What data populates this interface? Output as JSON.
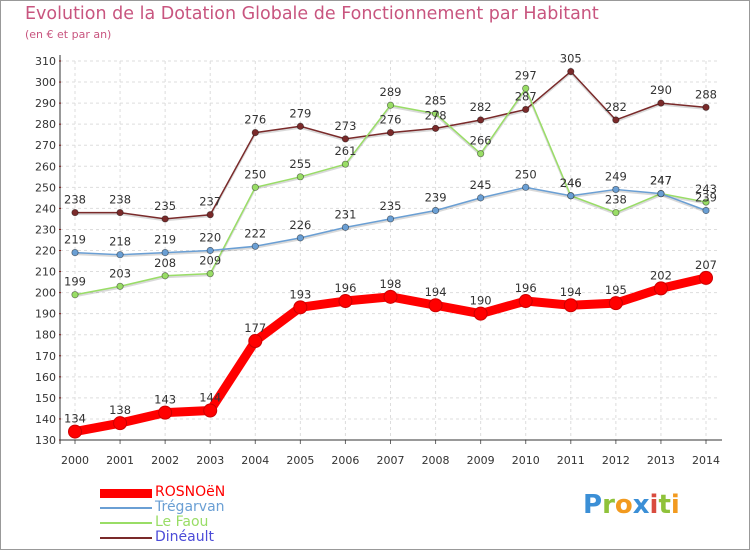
{
  "header": {
    "title": "Evolution de la Dotation Globale de Fonctionnement par Habitant",
    "subtitle": "(en € et par an)"
  },
  "logo": {
    "letters": [
      "P",
      "r",
      "o",
      "x",
      "i",
      "t",
      "i"
    ],
    "colors": [
      "#3b8fd6",
      "#8fc23a",
      "#f29a1f",
      "#3b8fd6",
      "#d94c3f",
      "#8fc23a",
      "#f29a1f"
    ]
  },
  "chart_data": {
    "type": "line",
    "title": "Evolution de la Dotation Globale de Fonctionnement par Habitant",
    "subtitle": "(en € et par an)",
    "xlabel": "",
    "ylabel": "",
    "x": [
      2000,
      2001,
      2002,
      2003,
      2004,
      2005,
      2006,
      2007,
      2008,
      2009,
      2010,
      2011,
      2012,
      2013,
      2014
    ],
    "ylim": [
      130,
      310
    ],
    "yticks": [
      130,
      140,
      150,
      160,
      170,
      180,
      190,
      200,
      210,
      220,
      230,
      240,
      250,
      260,
      270,
      280,
      290,
      300,
      310
    ],
    "grid": true,
    "legend_position": "bottom-left",
    "series": [
      {
        "name": "ROSNOëN",
        "color": "#ff0000",
        "values": [
          134,
          138,
          143,
          144,
          177,
          193,
          196,
          198,
          194,
          190,
          196,
          194,
          195,
          202,
          207
        ]
      },
      {
        "name": "Trégarvan",
        "color": "#6a9fd4",
        "values": [
          219,
          218,
          219,
          220,
          222,
          226,
          231,
          235,
          239,
          245,
          250,
          246,
          249,
          247,
          239
        ]
      },
      {
        "name": "Le Faou",
        "color": "#99dd66",
        "values": [
          199,
          203,
          208,
          209,
          250,
          255,
          261,
          289,
          285,
          266,
          297,
          246,
          238,
          247,
          243
        ]
      },
      {
        "name": "Dinéault",
        "color": "#7a2a2a",
        "values": [
          238,
          238,
          235,
          237,
          276,
          279,
          273,
          276,
          278,
          282,
          287,
          305,
          282,
          290,
          288
        ]
      }
    ]
  }
}
